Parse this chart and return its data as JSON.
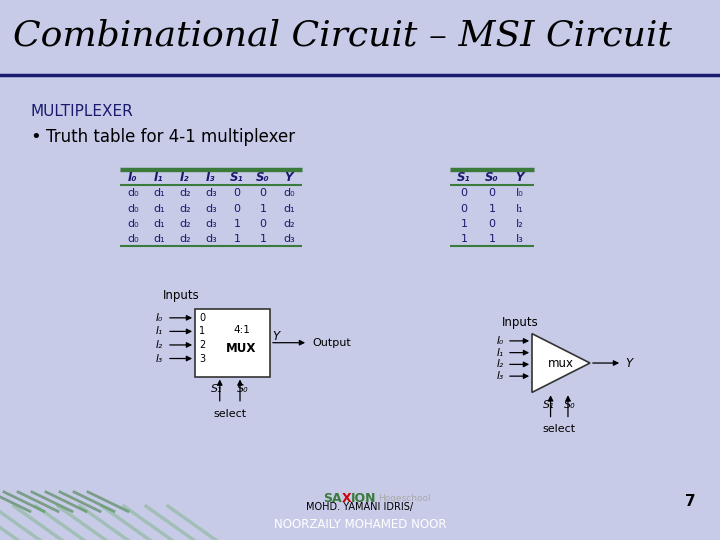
{
  "title": "Combinational Circuit – MSI Circuit",
  "title_fontsize": 26,
  "slide_bg": "#c8cbe8",
  "title_fg": "#000000",
  "multiplexer_label": "MULTIPLEXER",
  "bullet_text": "Truth table for 4-1 multiplexer",
  "footer_line1": "MOHD. YAMANI IDRIS/",
  "footer_line2": "NOORZAILY MOHAMED NOOR",
  "footer_right_num": "7",
  "table1_headers": [
    "I₀",
    "I₁",
    "I₂",
    "I₃",
    "S₁",
    "S₀",
    "Y"
  ],
  "table1_rows": [
    [
      "d₀",
      "d₁",
      "d₂",
      "d₃",
      "0",
      "0",
      "d₀"
    ],
    [
      "d₀",
      "d₁",
      "d₂",
      "d₃",
      "0",
      "1",
      "d₁"
    ],
    [
      "d₀",
      "d₁",
      "d₂",
      "d₃",
      "1",
      "0",
      "d₂"
    ],
    [
      "d₀",
      "d₁",
      "d₂",
      "d₃",
      "1",
      "1",
      "d₃"
    ]
  ],
  "table2_headers": [
    "S₁",
    "S₀",
    "Y"
  ],
  "table2_rows": [
    [
      "0",
      "0",
      "I₀"
    ],
    [
      "0",
      "1",
      "I₁"
    ],
    [
      "1",
      "0",
      "I₂"
    ],
    [
      "1",
      "1",
      "I₃"
    ]
  ],
  "table_line_color": "#3a7a3a",
  "table_text_color": "#1a1a6e"
}
